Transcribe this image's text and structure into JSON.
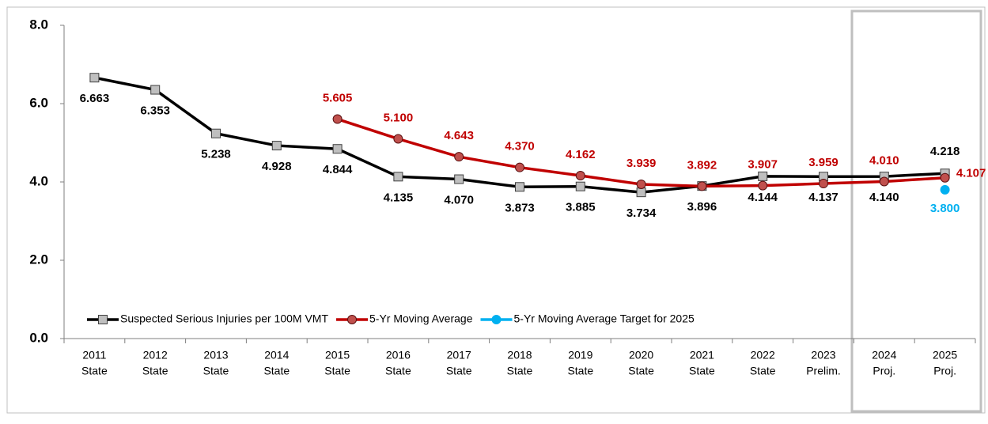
{
  "chart_data": {
    "type": "line",
    "categories": [
      [
        "2011",
        "State"
      ],
      [
        "2012",
        "State"
      ],
      [
        "2013",
        "State"
      ],
      [
        "2014",
        "State"
      ],
      [
        "2015",
        "State"
      ],
      [
        "2016",
        "State"
      ],
      [
        "2017",
        "State"
      ],
      [
        "2018",
        "State"
      ],
      [
        "2019",
        "State"
      ],
      [
        "2020",
        "State"
      ],
      [
        "2021",
        "State"
      ],
      [
        "2022",
        "State"
      ],
      [
        "2023",
        "Prelim."
      ],
      [
        "2024",
        "Proj."
      ],
      [
        "2025",
        "Proj."
      ]
    ],
    "series": [
      {
        "name": "Suspected Serious Injuries per 100M VMT",
        "color": "#000000",
        "marker": "square",
        "values": [
          6.663,
          6.353,
          5.238,
          4.928,
          4.844,
          4.135,
          4.07,
          3.873,
          3.885,
          3.734,
          3.896,
          4.144,
          4.137,
          4.14,
          4.218
        ],
        "value_labels": [
          "6.663",
          "6.353",
          "5.238",
          "4.928",
          "4.844",
          "4.135",
          "4.070",
          "3.873",
          "3.885",
          "3.734",
          "3.896",
          "4.144",
          "4.137",
          "4.140",
          "4.218"
        ]
      },
      {
        "name": "5-Yr Moving Average",
        "color": "#c00000",
        "marker": "circle",
        "values": [
          null,
          null,
          null,
          null,
          5.605,
          5.1,
          4.643,
          4.37,
          4.162,
          3.939,
          3.892,
          3.907,
          3.959,
          4.01,
          4.107
        ],
        "value_labels": [
          null,
          null,
          null,
          null,
          "5.605",
          "5.100",
          "4.643",
          "4.370",
          "4.162",
          "3.939",
          "3.892",
          "3.907",
          "3.959",
          "4.010",
          "4.107"
        ]
      },
      {
        "name": "5-Yr Moving Average Target for 2025",
        "color": "#00b0f0",
        "marker": "circle",
        "values": [
          null,
          null,
          null,
          null,
          null,
          null,
          null,
          null,
          null,
          null,
          null,
          null,
          null,
          null,
          3.8
        ],
        "value_labels": [
          null,
          null,
          null,
          null,
          null,
          null,
          null,
          null,
          null,
          null,
          null,
          null,
          null,
          null,
          "3.800"
        ]
      }
    ],
    "ylim": [
      0,
      8
    ],
    "yticks": [
      {
        "value": 0,
        "label": "0.0"
      },
      {
        "value": 2,
        "label": "2.0"
      },
      {
        "value": 4,
        "label": "4.0"
      },
      {
        "value": 6,
        "label": "6.0"
      },
      {
        "value": 8,
        "label": "8.0"
      }
    ],
    "grid": false,
    "legend": "bottom-left"
  }
}
